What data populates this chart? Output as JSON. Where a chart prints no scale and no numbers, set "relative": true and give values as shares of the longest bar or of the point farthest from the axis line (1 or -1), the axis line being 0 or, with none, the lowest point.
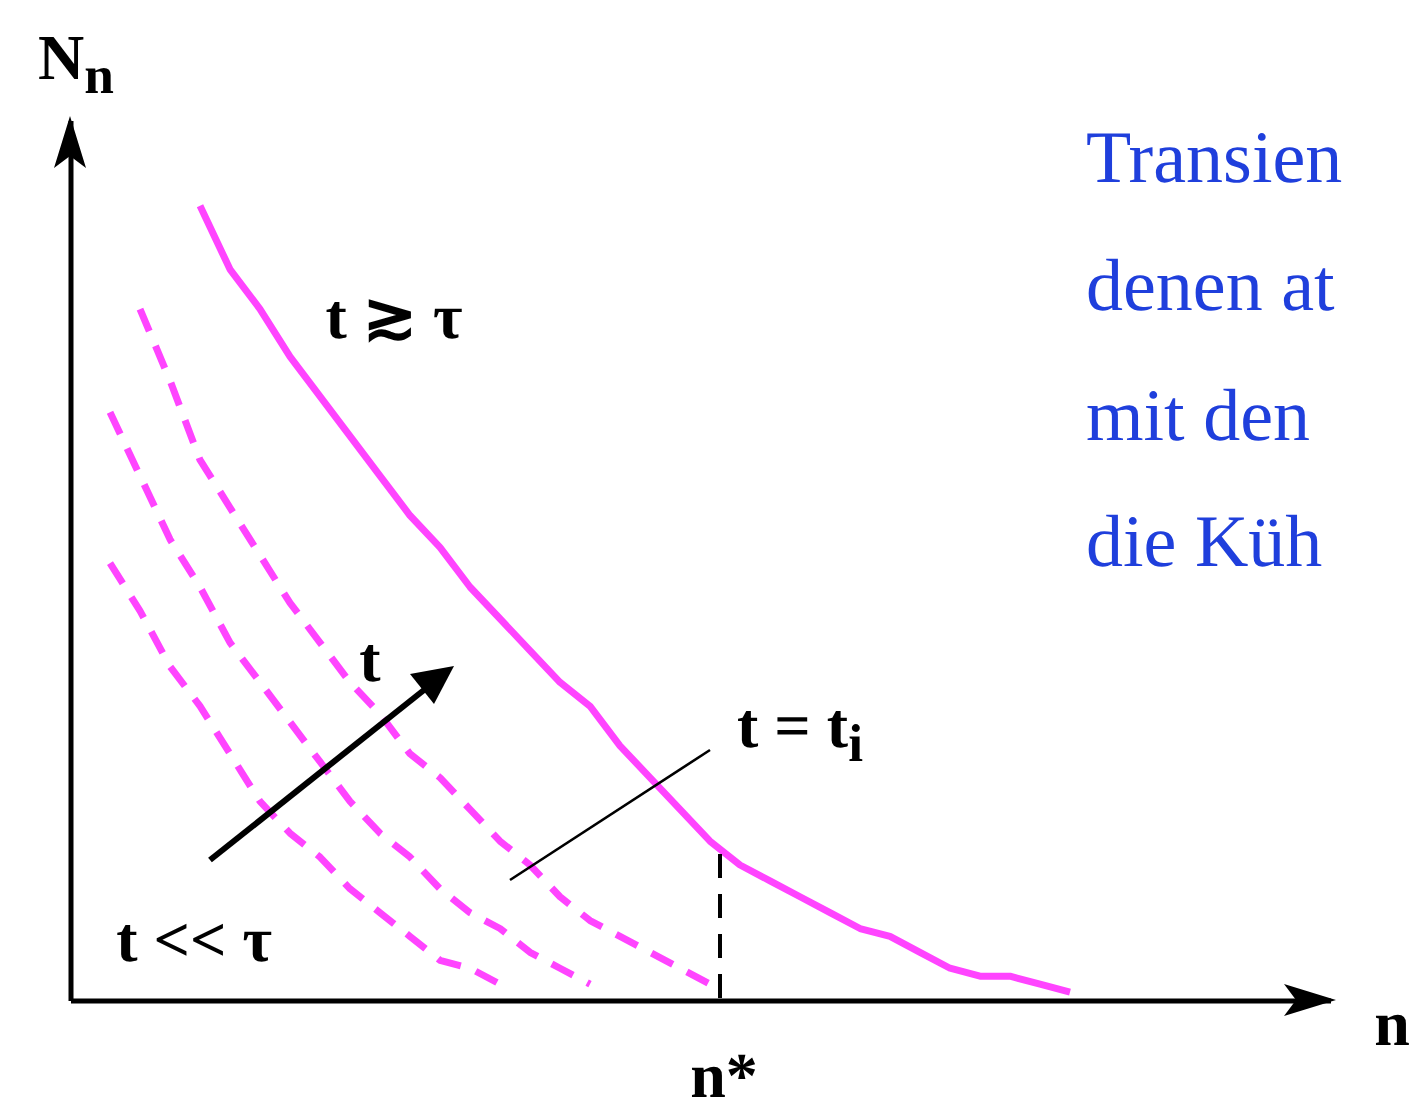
{
  "chart_data": {
    "type": "line",
    "relative": true,
    "xlabel": "n",
    "ylabel": "N$_{n}$",
    "marker": "none",
    "categories": [
      null,
      null,
      null,
      null,
      null,
      null,
      null,
      null,
      null,
      null,
      null,
      null,
      null,
      null,
      null,
      null,
      null,
      null,
      null,
      null,
      null,
      null,
      null,
      null,
      null,
      null,
      null,
      null,
      null,
      null,
      null,
      null,
      null,
      null
    ],
    "series": [
      {
        "color": "#ff44ff",
        "line_style": "solid",
        "values": [
          null,
          null,
          null,
          1,
          0.92,
          0.87,
          0.81,
          0.76,
          0.71,
          0.66,
          0.61,
          0.57,
          0.52,
          0.48,
          0.44,
          0.4,
          0.37,
          0.32,
          0.28,
          0.24,
          0.2,
          0.17,
          0.15,
          0.13,
          0.11,
          0.09,
          0.08,
          0.06,
          0.04,
          0.03,
          0.03,
          0.02,
          0.01,
          null
        ]
      },
      {
        "color": "#ff44ff",
        "line_style": "dashed",
        "values": [
          null,
          0.87,
          0.78,
          0.68,
          0.62,
          0.56,
          0.5,
          0.45,
          0.4,
          0.36,
          0.31,
          0.28,
          0.24,
          0.2,
          0.17,
          0.13,
          0.1,
          0.08,
          0.06,
          0.04,
          0.02,
          null,
          null,
          null,
          null,
          null,
          null,
          null,
          null,
          null,
          null,
          null,
          null,
          null
        ]
      },
      {
        "color": "#ff44ff",
        "line_style": "dashed",
        "values": [
          0.74,
          0.66,
          0.58,
          0.52,
          0.45,
          0.4,
          0.35,
          0.3,
          0.25,
          0.21,
          0.18,
          0.14,
          0.11,
          0.09,
          0.06,
          0.04,
          0.02,
          null,
          null,
          null,
          null,
          null,
          null,
          null,
          null,
          null,
          null,
          null,
          null,
          null,
          null,
          null,
          null,
          null
        ]
      },
      {
        "color": "#ff44ff",
        "line_style": "dashed",
        "values": [
          0.55,
          0.49,
          0.42,
          0.37,
          0.31,
          0.25,
          0.21,
          0.18,
          0.14,
          0.11,
          0.08,
          0.05,
          0.04,
          0.02,
          null,
          null,
          null,
          null,
          null,
          null,
          null,
          null,
          null,
          null,
          null,
          null,
          null,
          null,
          null,
          null,
          null,
          null,
          null,
          null
        ]
      }
    ],
    "annotations": [
      "t ≳ τ",
      "t",
      "t = t$_{i}$",
      "t << τ",
      "n*",
      "Transien",
      "denen at",
      "mit den",
      "die Küh"
    ]
  }
}
